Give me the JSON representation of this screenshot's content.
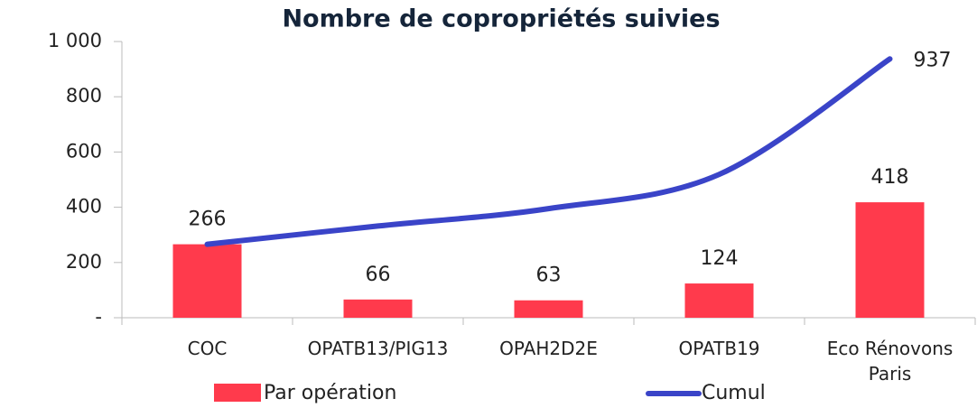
{
  "chart_data": {
    "type": "bar+line",
    "title": "Nombre de copropriétés suivies",
    "categories": [
      "COC",
      "OPATB13/PIG13",
      "OPAH2D2E",
      "OPATB19",
      "Eco Rénovons Paris"
    ],
    "series": [
      {
        "name": "Par opération",
        "type": "bar",
        "color": "#ff3a4c",
        "values": [
          266,
          66,
          63,
          124,
          418
        ]
      },
      {
        "name": "Cumul",
        "type": "line",
        "color": "#3a44c8",
        "values": [
          266,
          332,
          395,
          519,
          937
        ]
      }
    ],
    "ylim": [
      0,
      1000
    ],
    "yticks": [
      {
        "value": 0,
        "label": "-"
      },
      200,
      400,
      600,
      800,
      {
        "value": 1000,
        "label": "1 000"
      }
    ]
  }
}
